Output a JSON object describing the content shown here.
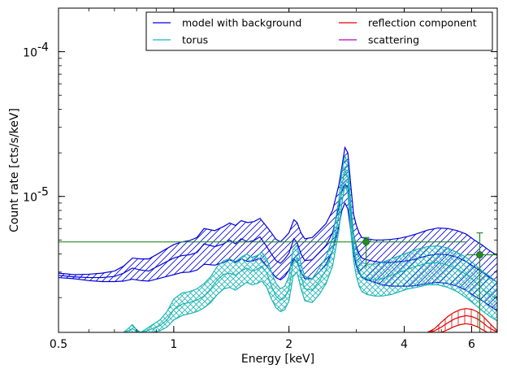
{
  "chart_data": {
    "type": "line",
    "xlabel": "Energy [keV]",
    "ylabel": "Count rate [cts/s/keV]",
    "xscale": "log",
    "yscale": "log",
    "xlim": [
      0.5,
      7.0
    ],
    "ylim": [
      1.15e-06,
      0.0002
    ],
    "x_ticks": [
      {
        "value": 0.5,
        "label": "0.5"
      },
      {
        "value": 1,
        "label": "1"
      },
      {
        "value": 2,
        "label": "2"
      },
      {
        "value": 4,
        "label": "4"
      },
      {
        "value": 6,
        "label": "6"
      }
    ],
    "y_ticks": [
      {
        "value": 1e-05,
        "base": "10",
        "exp": "-5"
      },
      {
        "value": 0.0001,
        "base": "10",
        "exp": "-4"
      }
    ],
    "legend": {
      "placement": "top-right",
      "entries": [
        {
          "label": "model with background",
          "color": "#0000dd"
        },
        {
          "label": "reflection component",
          "color": "#dd0000"
        },
        {
          "label": "torus",
          "color": "#1ab3b3"
        },
        {
          "label": "scattering",
          "color": "#bb00bb"
        }
      ]
    },
    "series": [
      {
        "name": "model with background",
        "color": "#0000dd",
        "hatch": "diagonal",
        "x": [
          0.5,
          0.55,
          0.6,
          0.65,
          0.7,
          0.74,
          0.78,
          0.82,
          0.86,
          0.9,
          0.95,
          1.0,
          1.05,
          1.1,
          1.15,
          1.2,
          1.28,
          1.35,
          1.4,
          1.45,
          1.5,
          1.56,
          1.62,
          1.68,
          1.74,
          1.8,
          1.85,
          1.9,
          1.95,
          2.0,
          2.06,
          2.1,
          2.15,
          2.2,
          2.3,
          2.4,
          2.5,
          2.6,
          2.7,
          2.75,
          2.8,
          2.85,
          2.9,
          2.95,
          3.0,
          3.05,
          3.1,
          3.2,
          3.35,
          3.5,
          3.7,
          3.9,
          4.1,
          4.3,
          4.6,
          4.9,
          5.2,
          5.5,
          5.8,
          6.1,
          6.4,
          6.7,
          7.0
        ],
        "upper": [
          2.95e-06,
          2.88e-06,
          2.9e-06,
          2.95e-06,
          3.05e-06,
          3.3e-06,
          3.75e-06,
          3.7e-06,
          3.7e-06,
          3.95e-06,
          4.3e-06,
          4.65e-06,
          4.85e-06,
          4.95e-06,
          5.2e-06,
          6e-06,
          5.8e-06,
          6.2e-06,
          6.55e-06,
          6.3e-06,
          6.8e-06,
          6.6e-06,
          6.7e-06,
          7.05e-06,
          6.3e-06,
          5.6e-06,
          5.05e-06,
          4.85e-06,
          5.2e-06,
          5.6e-06,
          6.9e-06,
          6.6e-06,
          5.6e-06,
          5.1e-06,
          5.2e-06,
          5.8e-06,
          6.5e-06,
          8e-06,
          1.2e-05,
          1.6e-05,
          2.18e-05,
          2e-05,
          1.2e-05,
          7.5e-06,
          6.3e-06,
          5.6e-06,
          5.2e-06,
          5.1e-06,
          5e-06,
          5e-06,
          5.05e-06,
          5.15e-06,
          5.3e-06,
          5.5e-06,
          5.85e-06,
          6.05e-06,
          6e-06,
          5.8e-06,
          5.5e-06,
          5e-06,
          4.6e-06,
          4.2e-06,
          3.9e-06
        ],
        "middle": [
          2.85e-06,
          2.78e-06,
          2.75e-06,
          2.75e-06,
          2.8e-06,
          2.95e-06,
          3.2e-06,
          3.1e-06,
          3.05e-06,
          3.25e-06,
          3.5e-06,
          3.75e-06,
          3.9e-06,
          3.95e-06,
          4.1e-06,
          4.7e-06,
          4.5e-06,
          4.7e-06,
          5e-06,
          4.7e-06,
          5.1e-06,
          4.85e-06,
          4.95e-06,
          5.25e-06,
          4.6e-06,
          4e-06,
          3.6e-06,
          3.45e-06,
          3.7e-06,
          4.05e-06,
          5.1e-06,
          4.8e-06,
          4e-06,
          3.6e-06,
          3.65e-06,
          4.1e-06,
          4.6e-06,
          5.6e-06,
          8.5e-06,
          1.1e-05,
          1.22e-05,
          1.15e-05,
          8e-06,
          5.5e-06,
          4.5e-06,
          4e-06,
          3.75e-06,
          3.65e-06,
          3.55e-06,
          3.5e-06,
          3.5e-06,
          3.55e-06,
          3.6e-06,
          3.7e-06,
          3.9e-06,
          4e-06,
          3.95e-06,
          3.8e-06,
          3.55e-06,
          3.25e-06,
          3e-06,
          2.75e-06,
          2.55e-06
        ],
        "lower": [
          2.75e-06,
          2.7e-06,
          2.62e-06,
          2.58e-06,
          2.58e-06,
          2.6e-06,
          2.68e-06,
          2.62e-06,
          2.6e-06,
          2.68e-06,
          2.78e-06,
          2.88e-06,
          2.98e-06,
          3e-06,
          3.1e-06,
          3.4e-06,
          3.35e-06,
          3.5e-06,
          3.65e-06,
          3.5e-06,
          3.7e-06,
          3.55e-06,
          3.6e-06,
          3.75e-06,
          3.35e-06,
          3e-06,
          2.75e-06,
          2.65e-06,
          2.8e-06,
          3.1e-06,
          3.7e-06,
          3.5e-06,
          3e-06,
          2.7e-06,
          2.7e-06,
          3e-06,
          3.4e-06,
          4.2e-06,
          6.2e-06,
          8e-06,
          9e-06,
          8.2e-06,
          5.8e-06,
          4e-06,
          3.3e-06,
          2.95e-06,
          2.75e-06,
          2.65e-06,
          2.55e-06,
          2.45e-06,
          2.4e-06,
          2.4e-06,
          2.4e-06,
          2.42e-06,
          2.5e-06,
          2.55e-06,
          2.5e-06,
          2.4e-06,
          2.25e-06,
          2.05e-06,
          1.9e-06,
          1.75e-06,
          1.62e-06
        ]
      },
      {
        "name": "torus",
        "color": "#1ab3b3",
        "hatch": "cross",
        "x": [
          0.74,
          0.76,
          0.78,
          0.8,
          0.82,
          0.85,
          0.88,
          0.92,
          0.96,
          1.0,
          1.05,
          1.1,
          1.15,
          1.2,
          1.25,
          1.3,
          1.35,
          1.4,
          1.45,
          1.5,
          1.55,
          1.6,
          1.65,
          1.7,
          1.75,
          1.8,
          1.85,
          1.9,
          1.95,
          2.0,
          2.05,
          2.1,
          2.15,
          2.2,
          2.3,
          2.4,
          2.5,
          2.6,
          2.7,
          2.75,
          2.8,
          2.85,
          2.9,
          2.95,
          3.0,
          3.05,
          3.1,
          3.2,
          3.35,
          3.5,
          3.7,
          3.9,
          4.1,
          4.3,
          4.6,
          4.9,
          5.2,
          5.5,
          5.8,
          6.1,
          6.4,
          6.7,
          7.0
        ],
        "upper": [
          1.15e-06,
          1.22e-06,
          1.3e-06,
          1.2e-06,
          1.15e-06,
          1.22e-06,
          1.3e-06,
          1.4e-06,
          1.6e-06,
          1.95e-06,
          2.15e-06,
          2.2e-06,
          2.3e-06,
          2.5e-06,
          2.8e-06,
          3.3e-06,
          3.6e-06,
          3.7e-06,
          3.55e-06,
          3.8e-06,
          4e-06,
          3.8e-06,
          3.9e-06,
          4.1e-06,
          3.7e-06,
          3e-06,
          2.5e-06,
          2.3e-06,
          2.4e-06,
          2.8e-06,
          4.3e-06,
          4.6e-06,
          3.4e-06,
          2.8e-06,
          2.7e-06,
          3.2e-06,
          3.8e-06,
          5.2e-06,
          9.5e-06,
          1.5e-05,
          1.9e-05,
          1.7e-05,
          9e-06,
          5.5e-06,
          4.3e-06,
          3.8e-06,
          3.5e-06,
          3.4e-06,
          3.4e-06,
          3.5e-06,
          3.7e-06,
          3.9e-06,
          4.1e-06,
          4.3e-06,
          4.5e-06,
          4.55e-06,
          4.4e-06,
          4.1e-06,
          3.8e-06,
          3.4e-06,
          3.05e-06,
          2.8e-06,
          2.55e-06
        ],
        "lower": [
          1.15e-06,
          1.15e-06,
          1.15e-06,
          1.15e-06,
          1.15e-06,
          1.15e-06,
          1.15e-06,
          1.18e-06,
          1.25e-06,
          1.4e-06,
          1.5e-06,
          1.55e-06,
          1.6e-06,
          1.7e-06,
          1.85e-06,
          2.1e-06,
          2.3e-06,
          2.35e-06,
          2.25e-06,
          2.4e-06,
          2.55e-06,
          2.45e-06,
          2.5e-06,
          2.6e-06,
          2.35e-06,
          1.95e-06,
          1.7e-06,
          1.6e-06,
          1.65e-06,
          1.9e-06,
          2.8e-06,
          3e-06,
          2.3e-06,
          1.9e-06,
          1.85e-06,
          2.1e-06,
          2.5e-06,
          3.3e-06,
          5.8e-06,
          9e-06,
          1.2e-05,
          1.05e-05,
          5.8e-06,
          3.6e-06,
          2.8e-06,
          2.4e-06,
          2.2e-06,
          2.1e-06,
          2.05e-06,
          2.05e-06,
          2.1e-06,
          2.2e-06,
          2.3e-06,
          2.35e-06,
          2.45e-06,
          2.45e-06,
          2.35e-06,
          2.2e-06,
          2e-06,
          1.8e-06,
          1.62e-06,
          1.48e-06,
          1.38e-06
        ],
        "middle": [
          1.15e-06,
          1.18e-06,
          1.22e-06,
          1.17e-06,
          1.15e-06,
          1.18e-06,
          1.22e-06,
          1.28e-06,
          1.4e-06,
          1.65e-06,
          1.8e-06,
          1.85e-06,
          1.92e-06,
          2.05e-06,
          2.3e-06,
          2.65e-06,
          2.9e-06,
          2.95e-06,
          2.85e-06,
          3.05e-06,
          3.2e-06,
          3.05e-06,
          3.12e-06,
          3.3e-06,
          2.95e-06,
          2.4e-06,
          2.05e-06,
          1.92e-06,
          2e-06,
          2.3e-06,
          3.5e-06,
          3.75e-06,
          2.8e-06,
          2.3e-06,
          2.25e-06,
          2.6e-06,
          3.1e-06,
          4.2e-06,
          7.5e-06,
          1.18e-05,
          1.52e-05,
          1.35e-05,
          7.3e-06,
          4.5e-06,
          3.5e-06,
          3.05e-06,
          2.8e-06,
          2.7e-06,
          2.65e-06,
          2.7e-06,
          2.85e-06,
          3e-06,
          3.15e-06,
          3.3e-06,
          3.45e-06,
          3.5e-06,
          3.35e-06,
          3.15e-06,
          2.9e-06,
          2.6e-06,
          2.3e-06,
          2.1e-06,
          1.95e-06
        ]
      },
      {
        "name": "reflection component",
        "color": "#dd0000",
        "hatch": "vertical",
        "x": [
          4.6,
          4.8,
          5.0,
          5.2,
          5.4,
          5.6,
          5.8,
          6.0,
          6.2,
          6.4,
          6.6,
          6.8,
          7.0
        ],
        "upper": [
          1.15e-06,
          1.22e-06,
          1.35e-06,
          1.48e-06,
          1.58e-06,
          1.65e-06,
          1.68e-06,
          1.66e-06,
          1.6e-06,
          1.5e-06,
          1.38e-06,
          1.27e-06,
          1.18e-06
        ],
        "lower": [
          1.15e-06,
          1.15e-06,
          1.15e-06,
          1.2e-06,
          1.26e-06,
          1.3e-06,
          1.32e-06,
          1.3e-06,
          1.26e-06,
          1.2e-06,
          1.15e-06,
          1.15e-06,
          1.15e-06
        ],
        "middle": [
          1.15e-06,
          1.18e-06,
          1.25e-06,
          1.34e-06,
          1.42e-06,
          1.47e-06,
          1.5e-06,
          1.48e-06,
          1.43e-06,
          1.35e-06,
          1.26e-06,
          1.2e-06,
          1.16e-06
        ]
      }
    ],
    "data_points": {
      "color": "#228b22",
      "points": [
        {
          "x": 3.18,
          "y": 4.85e-06,
          "xerr": [
            0.5,
            5.8
          ],
          "yerr": [
            3.2e-06,
            5.2e-06
          ]
        },
        {
          "x": 6.3,
          "y": 3.95e-06,
          "xerr": [
            5.8,
            7.0
          ],
          "yerr": [
            1.15e-06,
            5.6e-06
          ]
        }
      ]
    }
  }
}
